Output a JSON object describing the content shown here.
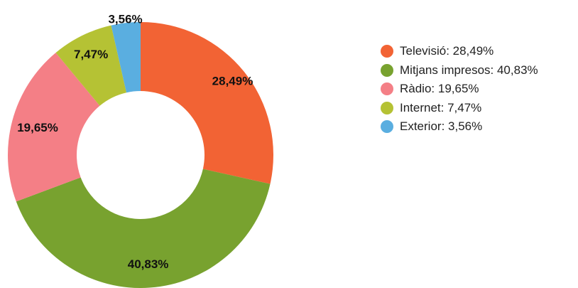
{
  "chart_data": {
    "type": "pie",
    "variant": "donut",
    "categories": [
      "Televisió",
      "Mitjans impresos",
      "Ràdio",
      "Internet",
      "Exterior"
    ],
    "values": [
      28.49,
      40.83,
      19.65,
      7.47,
      3.56
    ],
    "slice_labels": [
      "28,49%",
      "40,83%",
      "19,65%",
      "7,47%",
      "3,56%"
    ],
    "colors": [
      "#f26334",
      "#78a22f",
      "#f47f86",
      "#b5c234",
      "#5aaee0"
    ],
    "legend_position": "right",
    "legend": [
      {
        "label": "Televisió: 28,49%",
        "color": "#f26334"
      },
      {
        "label": "Mitjans impresos: 40,83%",
        "color": "#78a22f"
      },
      {
        "label": "Ràdio: 19,65%",
        "color": "#f47f86"
      },
      {
        "label": "Internet: 7,47%",
        "color": "#b5c234"
      },
      {
        "label": "Exterior: 3,56%",
        "color": "#5aaee0"
      }
    ]
  }
}
